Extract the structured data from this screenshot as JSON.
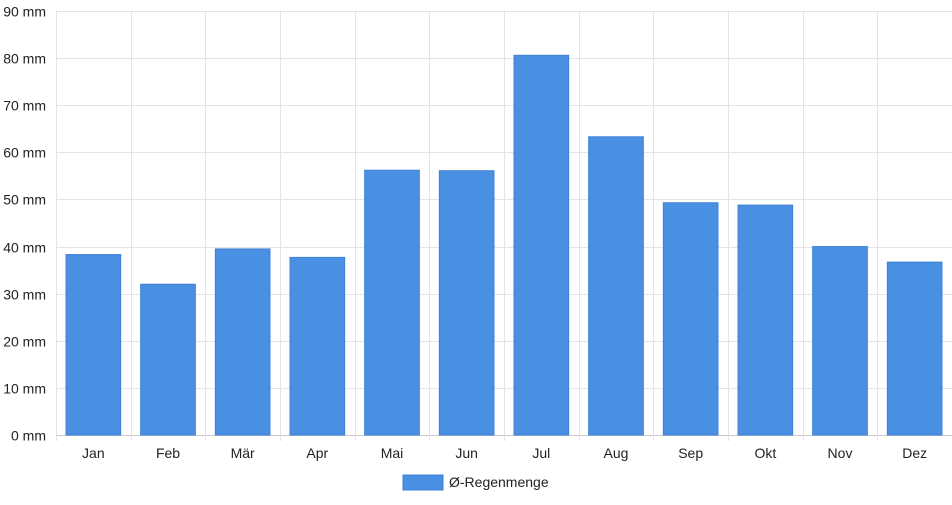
{
  "chart_data": {
    "type": "bar",
    "title": "",
    "xlabel": "",
    "ylabel": "",
    "categories": [
      "Jan",
      "Feb",
      "Mär",
      "Apr",
      "Mai",
      "Jun",
      "Jul",
      "Aug",
      "Sep",
      "Okt",
      "Nov",
      "Dez"
    ],
    "series": [
      {
        "name": "Ø-Regenmenge",
        "values": [
          38.3,
          32.0,
          39.5,
          37.7,
          56.2,
          56.1,
          80.6,
          63.3,
          49.3,
          48.8,
          40.0,
          36.7
        ],
        "color": "#4a90e2"
      }
    ],
    "ylim": [
      0,
      90
    ],
    "yticks": [
      "0 mm",
      "10 mm",
      "20 mm",
      "30 mm",
      "40 mm",
      "50 mm",
      "60 mm",
      "70 mm",
      "80 mm",
      "90 mm"
    ],
    "grid": true,
    "legend_position": "bottom-center"
  }
}
